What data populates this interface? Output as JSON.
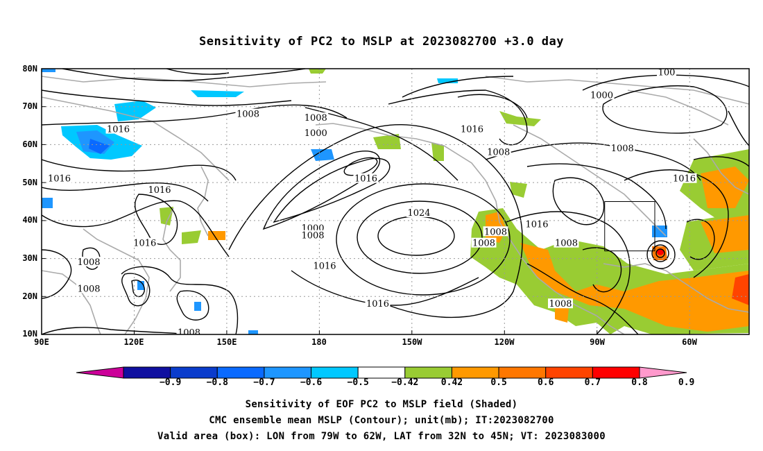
{
  "title": "Sensitivity of PC2 to MSLP at 2023082700 +3.0 day",
  "lat_labels": [
    "80N",
    "70N",
    "60N",
    "50N",
    "40N",
    "30N",
    "20N",
    "10N"
  ],
  "lon_labels": [
    "90E",
    "120E",
    "150E",
    "180",
    "150W",
    "120W",
    "90W",
    "60W"
  ],
  "contour_labels": [
    {
      "text": "1008",
      "lon": 160,
      "lat": 68
    },
    {
      "text": "1008",
      "lon": -177,
      "lat": 67
    },
    {
      "text": "1000",
      "lon": -177,
      "lat": 63
    },
    {
      "text": "1016",
      "lon": -124,
      "lat": 64
    },
    {
      "text": "1008",
      "lon": -115,
      "lat": 58
    },
    {
      "text": "1000",
      "lon": -80,
      "lat": 73
    },
    {
      "text": "1008",
      "lon": -73,
      "lat": 59
    },
    {
      "text": "1016",
      "lon": 116,
      "lat": 64
    },
    {
      "text": "1016",
      "lon": 96,
      "lat": 51
    },
    {
      "text": "1016",
      "lon": 130,
      "lat": 48
    },
    {
      "text": "1016",
      "lon": -160,
      "lat": 51
    },
    {
      "text": "1000",
      "lon": -178,
      "lat": 38
    },
    {
      "text": "1008",
      "lon": -178,
      "lat": 36
    },
    {
      "text": "1024",
      "lon": -142,
      "lat": 42
    },
    {
      "text": "1008",
      "lon": -116,
      "lat": 37
    },
    {
      "text": "1008",
      "lon": -120,
      "lat": 34
    },
    {
      "text": "1016",
      "lon": -102,
      "lat": 39
    },
    {
      "text": "1008",
      "lon": -92,
      "lat": 34
    },
    {
      "text": "1016",
      "lon": -52,
      "lat": 51
    },
    {
      "text": "1016",
      "lon": 125,
      "lat": 34
    },
    {
      "text": "1016",
      "lon": -174,
      "lat": 28
    },
    {
      "text": "1016",
      "lon": -156,
      "lat": 18
    },
    {
      "text": "1008",
      "lon": 106,
      "lat": 29
    },
    {
      "text": "1008",
      "lon": 106,
      "lat": 22
    },
    {
      "text": "1008",
      "lon": -94,
      "lat": 18
    },
    {
      "text": "1008",
      "lon": 140,
      "lat": 10.5
    },
    {
      "text": "100",
      "lon": -58,
      "lat": 79
    }
  ],
  "colorbar": {
    "labels": [
      "−0.9",
      "−0.8",
      "−0.7",
      "−0.6",
      "−0.5",
      "−0.42",
      "0.42",
      "0.5",
      "0.6",
      "0.7",
      "0.8",
      "0.9"
    ],
    "colors": [
      "#1010a0",
      "#0a3ccc",
      "#0a6aff",
      "#1e96ff",
      "#00c8ff",
      "#ffffff",
      "#99cc33",
      "#ff9900",
      "#ff7700",
      "#ff4400",
      "#ff0000"
    ],
    "end_low": "#cc0099",
    "end_high": "#ff99cc"
  },
  "valid_box": {
    "lon_min": -79,
    "lon_max": -62,
    "lat_min": 32,
    "lat_max": 45
  },
  "captions": [
    "Sensitivity of EOF PC2 to MSLP field (Shaded)",
    "CMC ensemble mean MSLP (Contour); unit(mb); IT:2023082700",
    "Valid area (box): LON from 79W to 62W, LAT from 32N to 45N; VT: 2023083000"
  ]
}
